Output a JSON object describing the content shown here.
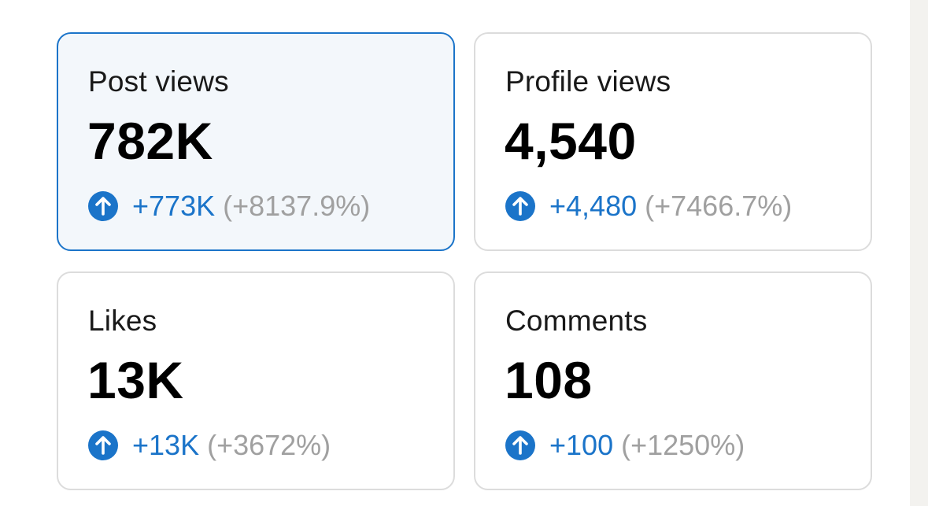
{
  "colors": {
    "accent": "#1b74c9",
    "muted": "#a0a0a0",
    "border": "#dcdcdc",
    "selected_bg": "#f3f7fb"
  },
  "cards": [
    {
      "label": "Post views",
      "value": "782K",
      "change": "+773K",
      "percent": "(+8137.9%)",
      "icon": "arrow-up-circle-icon",
      "selected": true
    },
    {
      "label": "Profile views",
      "value": "4,540",
      "change": "+4,480",
      "percent": "(+7466.7%)",
      "icon": "arrow-up-circle-icon",
      "selected": false
    },
    {
      "label": "Likes",
      "value": "13K",
      "change": "+13K",
      "percent": "(+3672%)",
      "icon": "arrow-up-circle-icon",
      "selected": false
    },
    {
      "label": "Comments",
      "value": "108",
      "change": "+100",
      "percent": "(+1250%)",
      "icon": "arrow-up-circle-icon",
      "selected": false
    }
  ]
}
